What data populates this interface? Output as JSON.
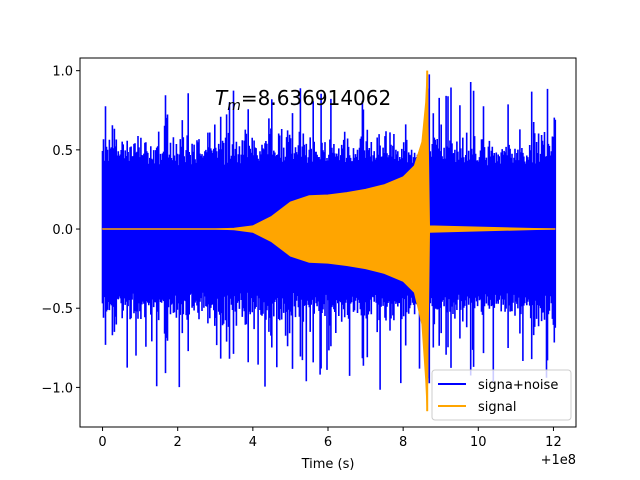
{
  "chart_data": {
    "type": "line",
    "title_main": "T",
    "title_sub": "m",
    "title_value": "=8.636914062",
    "xlabel": "Time (s)",
    "ylabel": "",
    "offset_label": "+1e8",
    "xlim": [
      -0.6,
      12.6
    ],
    "ylim": [
      -1.25,
      1.08
    ],
    "xticks": [
      0,
      2,
      4,
      6,
      8,
      10,
      12
    ],
    "xtick_labels": [
      "0",
      "2",
      "4",
      "6",
      "8",
      "10",
      "12"
    ],
    "yticks": [
      -1.0,
      -0.5,
      0.0,
      0.5,
      1.0
    ],
    "ytick_labels": [
      "−1.0",
      "−0.5",
      "0.0",
      "0.5",
      "1.0"
    ],
    "grid": false,
    "legend_position": "lower-right",
    "series": [
      {
        "name": "signa+noise",
        "color": "#0000ff",
        "x_range": [
          0,
          12.05
        ],
        "noise_amplitude_typical": 0.55,
        "noise_amplitude_max": 1.02
      },
      {
        "name": "signal",
        "color": "#ffa500",
        "x_range": [
          0,
          12.05
        ],
        "envelope": {
          "x": [
            0,
            3.0,
            3.5,
            4.0,
            4.5,
            5.0,
            5.5,
            6.0,
            6.5,
            7.0,
            7.5,
            8.0,
            8.3,
            8.5,
            8.6,
            8.64,
            8.7,
            12.05
          ],
          "upper": [
            0,
            0,
            0.005,
            0.02,
            0.08,
            0.17,
            0.21,
            0.215,
            0.23,
            0.25,
            0.28,
            0.33,
            0.4,
            0.55,
            0.8,
            1.0,
            0.02,
            0
          ],
          "lower": [
            0,
            0,
            -0.005,
            -0.02,
            -0.08,
            -0.17,
            -0.21,
            -0.215,
            -0.23,
            -0.25,
            -0.28,
            -0.33,
            -0.4,
            -0.6,
            -0.95,
            -1.15,
            -0.02,
            0
          ]
        }
      }
    ]
  }
}
